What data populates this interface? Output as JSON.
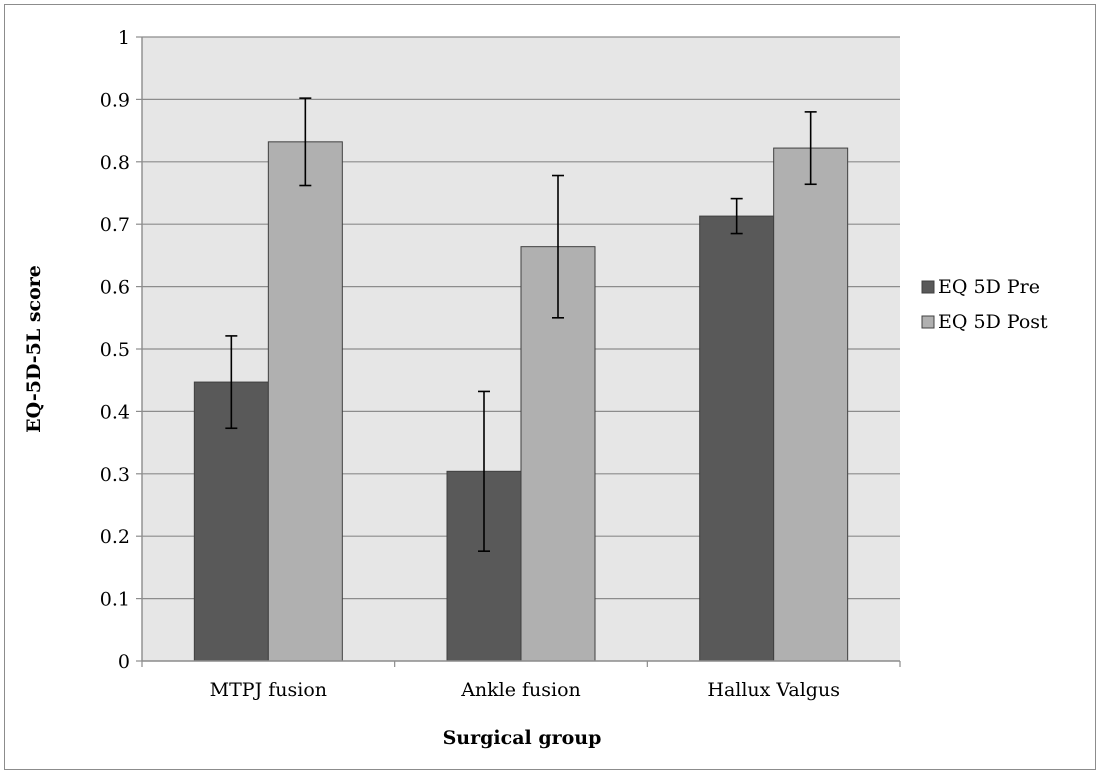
{
  "chart_data": {
    "type": "bar",
    "title": "",
    "xlabel": "Surgical group",
    "ylabel": "EQ-5D-5L score",
    "categories": [
      "MTPJ fusion",
      "Ankle fusion",
      "Hallux Valgus"
    ],
    "ylim": [
      0,
      1
    ],
    "yticks": [
      "0",
      "0.1",
      "0.2",
      "0.3",
      "0.4",
      "0.5",
      "0.6",
      "0.7",
      "0.8",
      "0.9",
      "1"
    ],
    "grid": true,
    "legend_position": "right",
    "series": [
      {
        "name": "EQ 5D Pre",
        "color": "#595959",
        "values": [
          0.447,
          0.304,
          0.713
        ],
        "error_low": [
          0.373,
          0.176,
          0.685
        ],
        "error_high": [
          0.521,
          0.432,
          0.741
        ]
      },
      {
        "name": "EQ 5D Post",
        "color": "#b0b0b0",
        "values": [
          0.832,
          0.664,
          0.822
        ],
        "error_low": [
          0.762,
          0.55,
          0.764
        ],
        "error_high": [
          0.902,
          0.778,
          0.88
        ]
      }
    ],
    "plot_background": "#e6e6e6",
    "gridline_color": "#8c8c8c"
  }
}
